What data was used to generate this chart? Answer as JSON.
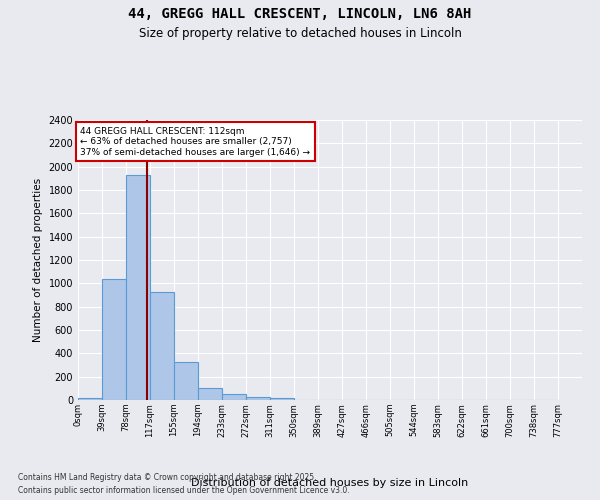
{
  "title_line1": "44, GREGG HALL CRESCENT, LINCOLN, LN6 8AH",
  "title_line2": "Size of property relative to detached houses in Lincoln",
  "xlabel": "Distribution of detached houses by size in Lincoln",
  "ylabel": "Number of detached properties",
  "background_color": "#e8eaf0",
  "bar_color": "#aec6e8",
  "bar_edge_color": "#5b9bd5",
  "grid_color": "#ffffff",
  "bin_labels": [
    "0sqm",
    "39sqm",
    "78sqm",
    "117sqm",
    "155sqm",
    "194sqm",
    "233sqm",
    "272sqm",
    "311sqm",
    "350sqm",
    "389sqm",
    "427sqm",
    "466sqm",
    "505sqm",
    "544sqm",
    "583sqm",
    "622sqm",
    "661sqm",
    "700sqm",
    "738sqm",
    "777sqm"
  ],
  "bar_values": [
    15,
    1035,
    1925,
    930,
    325,
    105,
    55,
    30,
    20,
    0,
    0,
    0,
    0,
    0,
    0,
    0,
    0,
    0,
    0,
    0
  ],
  "ylim": [
    0,
    2400
  ],
  "yticks": [
    0,
    200,
    400,
    600,
    800,
    1000,
    1200,
    1400,
    1600,
    1800,
    2000,
    2200,
    2400
  ],
  "property_size": 112,
  "annotation_line1": "44 GREGG HALL CRESCENT: 112sqm",
  "annotation_line2": "← 63% of detached houses are smaller (2,757)",
  "annotation_line3": "37% of semi-detached houses are larger (1,646) →",
  "vline_color": "#8b0000",
  "annotation_box_color": "#ffffff",
  "annotation_box_edge": "#cc0000",
  "footer_line1": "Contains HM Land Registry data © Crown copyright and database right 2025.",
  "footer_line2": "Contains public sector information licensed under the Open Government Licence v3.0.",
  "bin_width": 39
}
